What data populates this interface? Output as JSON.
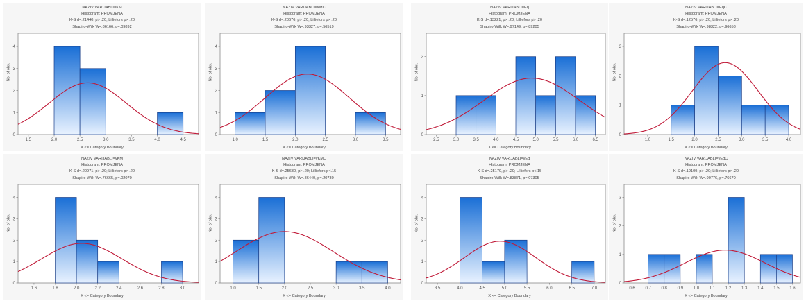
{
  "colors": {
    "bar_top": "#1a6fd6",
    "bar_bottom": "#e8f2ff",
    "bar_stroke": "#1a3e88",
    "curve": "#c01a38",
    "plot_bg": "#ffffff",
    "panel_bg": "#f6f6f6"
  },
  "chart_data": [
    {
      "type": "bar",
      "title": [
        "NAZIV VARIJABLI=KM",
        "Histogram: PROMJENA",
        "K-S d=.21440, p> .20; Lilliefors p> .20",
        "Shapiro-Wilk W=.86166, p=.09892"
      ],
      "xlabel": "X <= Category Boundary",
      "ylabel": "No. of obs.",
      "xlim": [
        1.3,
        4.8
      ],
      "ylim": [
        0,
        4.6
      ],
      "xticks": [
        "1.5",
        "2.0",
        "2.5",
        "3.0",
        "3.5",
        "4.0",
        "4.5"
      ],
      "yticks": [
        "0",
        "1",
        "2",
        "3",
        "4"
      ],
      "bins": [
        [
          2.0,
          2.5,
          4
        ],
        [
          2.5,
          3.0,
          3
        ],
        [
          4.0,
          4.5,
          1
        ]
      ],
      "normal_curve": {
        "mean": 2.65,
        "sd": 0.75,
        "peak": 2.35
      }
    },
    {
      "type": "bar",
      "title": [
        "NAZIV VARIJABLI=KMC",
        "Histogram: PROMJENA",
        "K-S d=.20676, p> .20; Lilliefors p> .20",
        "Shapiro-Wilk W=.93327, p=.56519"
      ],
      "xlabel": "X <= Category Boundary",
      "ylabel": "No. of obs.",
      "xlim": [
        0.75,
        3.75
      ],
      "ylim": [
        0,
        4.6
      ],
      "xticks": [
        "1.0",
        "1.5",
        "2.0",
        "2.5",
        "3.0",
        "3.5"
      ],
      "yticks": [
        "0",
        "1",
        "2",
        "3",
        "4"
      ],
      "bins": [
        [
          1.0,
          1.5,
          1
        ],
        [
          1.5,
          2.0,
          2
        ],
        [
          2.0,
          2.5,
          4
        ],
        [
          3.0,
          3.5,
          1
        ]
      ],
      "normal_curve": {
        "mean": 2.2,
        "sd": 0.7,
        "peak": 2.75
      }
    },
    {
      "type": "bar",
      "title": [
        "NAZIV VARIJABLI=Eq",
        "Histogram: PROMJENA",
        "K-S d=.13221, p> .20; Lilliefors p> .20",
        "Shapiro-Wilk W=.97149, p=.89205"
      ],
      "xlabel": "X <= Category Boundary",
      "ylabel": "No. of obs.",
      "xlim": [
        2.25,
        6.75
      ],
      "ylim": [
        0,
        2.6
      ],
      "xticks": [
        "2.5",
        "3.0",
        "3.5",
        "4.0",
        "4.5",
        "5.0",
        "5.5",
        "6.0",
        "6.5"
      ],
      "yticks": [
        "0",
        "1",
        "2"
      ],
      "bins": [
        [
          3.0,
          3.5,
          1
        ],
        [
          3.5,
          4.0,
          1
        ],
        [
          4.5,
          5.0,
          2
        ],
        [
          5.0,
          5.5,
          1
        ],
        [
          5.5,
          6.0,
          2
        ],
        [
          6.0,
          6.5,
          1
        ]
      ],
      "normal_curve": {
        "mean": 4.9,
        "sd": 1.2,
        "peak": 1.45
      }
    },
    {
      "type": "bar",
      "title": [
        "NAZIV VARIJABLI=EqC",
        "Histogram: PROMJENA",
        "K-S d=.12576, p> .20; Lilliefors p> .20",
        "Shapiro-Wilk W=.98322, p=.96658"
      ],
      "xlabel": "X <= Category Boundary",
      "ylabel": "No. of obs.",
      "xlim": [
        0.5,
        4.25
      ],
      "ylim": [
        0,
        3.45
      ],
      "xticks": [
        "1.0",
        "1.5",
        "2.0",
        "2.5",
        "3.0",
        "3.5",
        "4.0"
      ],
      "yticks": [
        "0",
        "1",
        "2",
        "3"
      ],
      "bins": [
        [
          1.5,
          2.0,
          1
        ],
        [
          2.0,
          2.5,
          3
        ],
        [
          2.5,
          3.0,
          2
        ],
        [
          3.0,
          3.5,
          1
        ],
        [
          3.5,
          4.0,
          1
        ]
      ],
      "normal_curve": {
        "mean": 2.65,
        "sd": 0.7,
        "peak": 2.45
      }
    },
    {
      "type": "bar",
      "title": [
        "NAZIV VARIJABLI=vKM",
        "Histogram: PROMJENA",
        "K-S d=.20971, p> .20; Lilliefors p> .20",
        "Shapiro-Wilk W=.76665, p=.02070"
      ],
      "xlabel": "X <= Category Boundary",
      "ylabel": "No. of obs.",
      "xlim": [
        1.45,
        3.15
      ],
      "ylim": [
        0,
        4.6
      ],
      "xticks": [
        "1.6",
        "1.8",
        "2.0",
        "2.2",
        "2.4",
        "2.6",
        "2.8",
        "3.0"
      ],
      "yticks": [
        "0",
        "1",
        "2",
        "3",
        "4"
      ],
      "bins": [
        [
          1.8,
          2.0,
          4
        ],
        [
          2.0,
          2.2,
          2
        ],
        [
          2.2,
          2.4,
          1
        ],
        [
          2.8,
          3.0,
          1
        ]
      ],
      "normal_curve": {
        "mean": 2.05,
        "sd": 0.38,
        "peak": 1.85
      }
    },
    {
      "type": "bar",
      "title": [
        "NAZIV VARIJABLI=vKMC",
        "Histogram: PROMJENA",
        "K-S d=.25630, p> .20; Lilliefors p<.15",
        "Shapiro-Wilk W=.86440, p=.20730"
      ],
      "xlabel": "X <= Category Boundary",
      "ylabel": "No. of obs.",
      "xlim": [
        0.75,
        4.25
      ],
      "ylim": [
        0,
        4.6
      ],
      "xticks": [
        "1.0",
        "1.5",
        "2.0",
        "2.5",
        "3.0",
        "3.5",
        "4.0"
      ],
      "yticks": [
        "0",
        "1",
        "2",
        "3",
        "4"
      ],
      "bins": [
        [
          1.0,
          1.5,
          2
        ],
        [
          1.5,
          2.0,
          4
        ],
        [
          3.0,
          3.5,
          1
        ],
        [
          3.5,
          4.0,
          1
        ]
      ],
      "normal_curve": {
        "mean": 2.0,
        "sd": 0.95,
        "peak": 2.4
      }
    },
    {
      "type": "bar",
      "title": [
        "NAZIV VARIJABLI=vEq",
        "Histogram: PROMJENA",
        "K-S d=.25179, p> .20; Lilliefors p<.15",
        "Shapiro-Wilk W=.83871, p=.07305"
      ],
      "xlabel": "X <= Category Boundary",
      "ylabel": "No. of obs.",
      "xlim": [
        3.25,
        7.25
      ],
      "ylim": [
        0,
        4.6
      ],
      "xticks": [
        "3.5",
        "4.0",
        "4.5",
        "5.0",
        "5.5",
        "6.0",
        "6.5",
        "7.0"
      ],
      "yticks": [
        "0",
        "1",
        "2",
        "3",
        "4"
      ],
      "bins": [
        [
          4.0,
          4.5,
          4
        ],
        [
          4.5,
          5.0,
          1
        ],
        [
          5.0,
          5.5,
          2
        ],
        [
          6.5,
          7.0,
          1
        ]
      ],
      "normal_curve": {
        "mean": 4.9,
        "sd": 0.8,
        "peak": 1.95
      }
    },
    {
      "type": "bar",
      "title": [
        "NAZIV VARIJABLI=vEqC",
        "Histogram: PROMJENA",
        "K-S d=.19109, p> .20; Lilliefors p> .20",
        "Shapiro-Wilk W=.90776, p=.76670"
      ],
      "xlabel": "X <= Category Boundary",
      "ylabel": "No. of obs.",
      "xlim": [
        0.55,
        1.65
      ],
      "ylim": [
        0,
        3.45
      ],
      "xticks": [
        "0.6",
        "0.7",
        "0.8",
        "0.9",
        "1.0",
        "1.1",
        "1.2",
        "1.3",
        "1.4",
        "1.5",
        "1.6"
      ],
      "yticks": [
        "0",
        "1",
        "2",
        "3"
      ],
      "bins": [
        [
          0.7,
          0.8,
          1
        ],
        [
          0.8,
          0.9,
          1
        ],
        [
          1.0,
          1.1,
          1
        ],
        [
          1.2,
          1.3,
          3
        ],
        [
          1.4,
          1.5,
          1
        ],
        [
          1.5,
          1.6,
          1
        ]
      ],
      "normal_curve": {
        "mean": 1.18,
        "sd": 0.25,
        "peak": 1.15
      }
    }
  ]
}
